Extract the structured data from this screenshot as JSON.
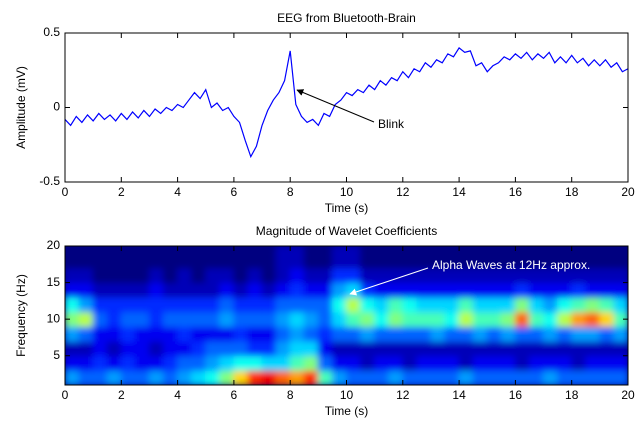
{
  "chart_data": [
    {
      "type": "line",
      "title": "EEG from Bluetooth-Brain",
      "xlabel": "Time (s)",
      "ylabel": "Amplitude (mV)",
      "color": "#0000ff",
      "x": [
        0,
        0.2,
        0.4,
        0.6,
        0.8,
        1,
        1.2,
        1.4,
        1.6,
        1.8,
        2,
        2.2,
        2.4,
        2.6,
        2.8,
        3,
        3.2,
        3.4,
        3.6,
        3.8,
        4,
        4.2,
        4.4,
        4.6,
        4.8,
        5,
        5.2,
        5.4,
        5.6,
        5.8,
        6,
        6.2,
        6.4,
        6.6,
        6.8,
        7,
        7.2,
        7.4,
        7.6,
        7.8,
        8,
        8.2,
        8.4,
        8.6,
        8.8,
        9,
        9.2,
        9.4,
        9.6,
        9.8,
        10,
        10.2,
        10.4,
        10.6,
        10.8,
        11,
        11.2,
        11.4,
        11.6,
        11.8,
        12,
        12.2,
        12.4,
        12.6,
        12.8,
        13,
        13.2,
        13.4,
        13.6,
        13.8,
        14,
        14.2,
        14.4,
        14.6,
        14.8,
        15,
        15.2,
        15.4,
        15.6,
        15.8,
        16,
        16.2,
        16.4,
        16.6,
        16.8,
        17,
        17.2,
        17.4,
        17.6,
        17.8,
        18,
        18.2,
        18.4,
        18.6,
        18.8,
        19,
        19.2,
        19.4,
        19.6,
        19.8,
        20
      ],
      "values": [
        -0.08,
        -0.12,
        -0.06,
        -0.1,
        -0.05,
        -0.09,
        -0.04,
        -0.08,
        -0.05,
        -0.09,
        -0.04,
        -0.08,
        -0.03,
        -0.07,
        -0.02,
        -0.06,
        -0.01,
        -0.04,
        0,
        -0.02,
        0.02,
        0,
        0.05,
        0.1,
        0.06,
        0.12,
        0,
        0.03,
        -0.02,
        0,
        -0.06,
        -0.1,
        -0.22,
        -0.33,
        -0.26,
        -0.12,
        -0.02,
        0.05,
        0.1,
        0.18,
        0.38,
        0.02,
        -0.06,
        -0.1,
        -0.08,
        -0.12,
        -0.04,
        -0.06,
        0.02,
        0.05,
        0.1,
        0.08,
        0.12,
        0.1,
        0.15,
        0.12,
        0.18,
        0.15,
        0.2,
        0.18,
        0.24,
        0.2,
        0.26,
        0.24,
        0.3,
        0.27,
        0.32,
        0.3,
        0.36,
        0.34,
        0.4,
        0.37,
        0.38,
        0.28,
        0.3,
        0.24,
        0.28,
        0.3,
        0.34,
        0.32,
        0.36,
        0.33,
        0.37,
        0.32,
        0.36,
        0.33,
        0.37,
        0.3,
        0.34,
        0.3,
        0.35,
        0.3,
        0.33,
        0.28,
        0.32,
        0.28,
        0.32,
        0.27,
        0.3,
        0.24,
        0.26
      ],
      "xlim": [
        0,
        20
      ],
      "xticks": [
        0,
        2,
        4,
        6,
        8,
        10,
        12,
        14,
        16,
        18,
        20
      ],
      "ylim": [
        -0.5,
        0.5
      ],
      "yticks": [
        -0.5,
        0,
        0.5
      ],
      "annotations": [
        {
          "text": "Blink"
        }
      ]
    },
    {
      "type": "heatmap",
      "title": "Magnitude of Wavelet Coefficients",
      "xlabel": "Time (s)",
      "ylabel": "Frequency (Hz)",
      "colormap": "jet",
      "clim": [
        0.1,
        1
      ],
      "xbins": [
        0,
        0.5,
        1,
        1.5,
        2,
        2.5,
        3,
        3.5,
        4,
        4.5,
        5,
        5.5,
        6,
        6.5,
        7,
        7.5,
        8,
        8.5,
        9,
        9.5,
        10,
        10.5,
        11,
        11.5,
        12,
        12.5,
        13,
        13.5,
        14,
        14.5,
        15,
        15.5,
        16,
        16.5,
        17,
        17.5,
        18,
        18.5,
        19,
        19.5,
        20
      ],
      "ybins": [
        1,
        3,
        5,
        7,
        9,
        11,
        13,
        15,
        17,
        20
      ],
      "z": [
        [
          0.35,
          0.3,
          0.3,
          0.35,
          0.3,
          0.3,
          0.35,
          0.3,
          0.35,
          0.4,
          0.45,
          0.55,
          0.7,
          0.85,
          0.9,
          0.8,
          0.75,
          0.85,
          0.5,
          0.35,
          0.3,
          0.3,
          0.3,
          0.35,
          0.3,
          0.3,
          0.3,
          0.3,
          0.35,
          0.3,
          0.3,
          0.3,
          0.3,
          0.3,
          0.35,
          0.3,
          0.3,
          0.3,
          0.3,
          0.3
        ],
        [
          0.2,
          0.2,
          0.25,
          0.2,
          0.25,
          0.2,
          0.2,
          0.25,
          0.3,
          0.3,
          0.35,
          0.4,
          0.45,
          0.45,
          0.4,
          0.4,
          0.5,
          0.55,
          0.3,
          0.2,
          0.2,
          0.15,
          0.2,
          0.2,
          0.15,
          0.2,
          0.2,
          0.2,
          0.15,
          0.2,
          0.2,
          0.2,
          0.15,
          0.2,
          0.2,
          0.2,
          0.15,
          0.2,
          0.2,
          0.2
        ],
        [
          0.15,
          0.15,
          0.2,
          0.15,
          0.2,
          0.2,
          0.15,
          0.2,
          0.2,
          0.25,
          0.3,
          0.3,
          0.3,
          0.25,
          0.25,
          0.35,
          0.4,
          0.4,
          0.2,
          0.15,
          0.15,
          0.15,
          0.15,
          0.15,
          0.15,
          0.15,
          0.15,
          0.15,
          0.15,
          0.15,
          0.15,
          0.15,
          0.15,
          0.15,
          0.15,
          0.15,
          0.15,
          0.15,
          0.15,
          0.15
        ],
        [
          0.35,
          0.3,
          0.2,
          0.2,
          0.25,
          0.2,
          0.2,
          0.2,
          0.25,
          0.2,
          0.2,
          0.2,
          0.25,
          0.2,
          0.2,
          0.3,
          0.35,
          0.3,
          0.25,
          0.3,
          0.3,
          0.35,
          0.3,
          0.3,
          0.3,
          0.3,
          0.35,
          0.3,
          0.3,
          0.35,
          0.3,
          0.35,
          0.3,
          0.3,
          0.35,
          0.3,
          0.35,
          0.35,
          0.3,
          0.35
        ],
        [
          0.55,
          0.6,
          0.3,
          0.25,
          0.3,
          0.3,
          0.25,
          0.3,
          0.3,
          0.3,
          0.3,
          0.35,
          0.3,
          0.3,
          0.3,
          0.35,
          0.4,
          0.35,
          0.3,
          0.4,
          0.5,
          0.55,
          0.45,
          0.55,
          0.5,
          0.5,
          0.5,
          0.45,
          0.6,
          0.5,
          0.5,
          0.55,
          0.8,
          0.5,
          0.45,
          0.6,
          0.75,
          0.8,
          0.7,
          0.5
        ],
        [
          0.45,
          0.35,
          0.25,
          0.25,
          0.25,
          0.25,
          0.25,
          0.25,
          0.25,
          0.25,
          0.25,
          0.3,
          0.25,
          0.25,
          0.25,
          0.3,
          0.3,
          0.3,
          0.3,
          0.45,
          0.6,
          0.45,
          0.4,
          0.5,
          0.45,
          0.4,
          0.4,
          0.4,
          0.5,
          0.4,
          0.4,
          0.4,
          0.55,
          0.4,
          0.35,
          0.45,
          0.5,
          0.55,
          0.5,
          0.4
        ],
        [
          0.2,
          0.2,
          0.15,
          0.15,
          0.15,
          0.15,
          0.2,
          0.15,
          0.15,
          0.15,
          0.15,
          0.2,
          0.15,
          0.2,
          0.15,
          0.2,
          0.25,
          0.2,
          0.2,
          0.35,
          0.4,
          0.25,
          0.2,
          0.2,
          0.2,
          0.2,
          0.2,
          0.2,
          0.2,
          0.2,
          0.2,
          0.2,
          0.25,
          0.2,
          0.2,
          0.2,
          0.25,
          0.2,
          0.2,
          0.2
        ],
        [
          0.15,
          0.15,
          0.1,
          0.1,
          0.1,
          0.1,
          0.15,
          0.1,
          0.15,
          0.1,
          0.15,
          0.15,
          0.1,
          0.15,
          0.1,
          0.15,
          0.2,
          0.15,
          0.15,
          0.25,
          0.25,
          0.15,
          0.15,
          0.15,
          0.15,
          0.15,
          0.15,
          0.15,
          0.15,
          0.15,
          0.15,
          0.15,
          0.15,
          0.15,
          0.15,
          0.15,
          0.15,
          0.15,
          0.15,
          0.15
        ],
        [
          0.1,
          0.1,
          0.1,
          0.1,
          0.1,
          0.1,
          0.1,
          0.1,
          0.1,
          0.1,
          0.1,
          0.1,
          0.1,
          0.1,
          0.1,
          0.15,
          0.15,
          0.1,
          0.1,
          0.15,
          0.15,
          0.1,
          0.1,
          0.1,
          0.1,
          0.1,
          0.1,
          0.1,
          0.1,
          0.1,
          0.1,
          0.1,
          0.1,
          0.1,
          0.1,
          0.1,
          0.1,
          0.1,
          0.1,
          0.1
        ]
      ],
      "xlim": [
        0,
        20
      ],
      "xticks": [
        0,
        2,
        4,
        6,
        8,
        10,
        12,
        14,
        16,
        18,
        20
      ],
      "ylim": [
        1,
        20
      ],
      "yticks": [
        5,
        10,
        15,
        20
      ],
      "annotations": [
        {
          "text": "Alpha Waves at 12Hz approx."
        }
      ]
    }
  ]
}
